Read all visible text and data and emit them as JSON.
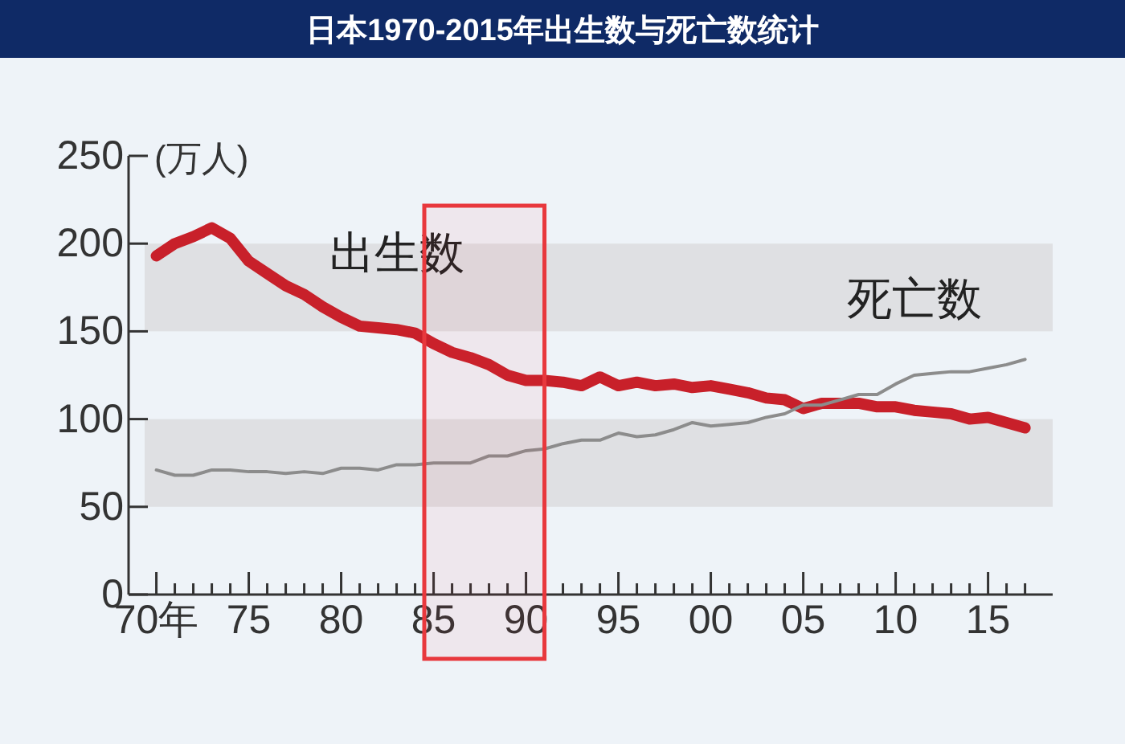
{
  "chart_data": {
    "type": "line",
    "title": "日本1970-2015年出生数与死亡数统计",
    "ylabel": "(万人)",
    "x": [
      "1970",
      "1971",
      "1972",
      "1973",
      "1974",
      "1975",
      "1976",
      "1977",
      "1978",
      "1979",
      "1980",
      "1981",
      "1982",
      "1983",
      "1984",
      "1985",
      "1986",
      "1987",
      "1988",
      "1989",
      "1990",
      "1991",
      "1992",
      "1993",
      "1994",
      "1995",
      "1996",
      "1997",
      "1998",
      "1999",
      "2000",
      "2001",
      "2002",
      "2003",
      "2004",
      "2005",
      "2006",
      "2007",
      "2008",
      "2009",
      "2010",
      "2011",
      "2012",
      "2013",
      "2014",
      "2015",
      "2016",
      "2017"
    ],
    "series": [
      {
        "name": "出生数",
        "color": "#c8202a",
        "values": [
          193,
          200,
          204,
          209,
          203,
          190,
          183,
          176,
          171,
          164,
          158,
          153,
          152,
          151,
          149,
          143,
          138,
          135,
          131,
          125,
          122,
          122,
          121,
          119,
          124,
          119,
          121,
          119,
          120,
          118,
          119,
          117,
          115,
          112,
          111,
          106,
          109,
          109,
          109,
          107,
          107,
          105,
          104,
          103,
          100,
          101,
          98,
          95
        ]
      },
      {
        "name": "死亡数",
        "color": "#8c8c8c",
        "values": [
          71,
          68,
          68,
          71,
          71,
          70,
          70,
          69,
          70,
          69,
          72,
          72,
          71,
          74,
          74,
          75,
          75,
          75,
          79,
          79,
          82,
          83,
          86,
          88,
          88,
          92,
          90,
          91,
          94,
          98,
          96,
          97,
          98,
          101,
          103,
          108,
          108,
          111,
          114,
          114,
          120,
          125,
          126,
          127,
          127,
          129,
          131,
          134
        ]
      }
    ],
    "xlim": [
      "1968-07",
      "2018-07"
    ],
    "xticks": [
      {
        "value": "1970",
        "label": "70年"
      },
      {
        "value": "1971",
        "label": null
      },
      {
        "value": "1972",
        "label": null
      },
      {
        "value": "1973",
        "label": null
      },
      {
        "value": "1974",
        "label": null
      },
      {
        "value": "1975",
        "label": "75"
      },
      {
        "value": "1976",
        "label": null
      },
      {
        "value": "1977",
        "label": null
      },
      {
        "value": "1978",
        "label": null
      },
      {
        "value": "1979",
        "label": null
      },
      {
        "value": "1980",
        "label": "80"
      },
      {
        "value": "1981",
        "label": null
      },
      {
        "value": "1982",
        "label": null
      },
      {
        "value": "1983",
        "label": null
      },
      {
        "value": "1984",
        "label": null
      },
      {
        "value": "1985",
        "label": "85"
      },
      {
        "value": "1986",
        "label": null
      },
      {
        "value": "1987",
        "label": null
      },
      {
        "value": "1988",
        "label": null
      },
      {
        "value": "1989",
        "label": null
      },
      {
        "value": "1990",
        "label": "90"
      },
      {
        "value": "1991",
        "label": null
      },
      {
        "value": "1992",
        "label": null
      },
      {
        "value": "1993",
        "label": null
      },
      {
        "value": "1994",
        "label": null
      },
      {
        "value": "1995",
        "label": "95"
      },
      {
        "value": "1996",
        "label": null
      },
      {
        "value": "1997",
        "label": null
      },
      {
        "value": "1998",
        "label": null
      },
      {
        "value": "1999",
        "label": null
      },
      {
        "value": "2000",
        "label": "00"
      },
      {
        "value": "2001",
        "label": null
      },
      {
        "value": "2002",
        "label": null
      },
      {
        "value": "2003",
        "label": null
      },
      {
        "value": "2004",
        "label": null
      },
      {
        "value": "2005",
        "label": "05"
      },
      {
        "value": "2006",
        "label": null
      },
      {
        "value": "2007",
        "label": null
      },
      {
        "value": "2008",
        "label": null
      },
      {
        "value": "2009",
        "label": null
      },
      {
        "value": "2010",
        "label": "10"
      },
      {
        "value": "2011",
        "label": null
      },
      {
        "value": "2012",
        "label": null
      },
      {
        "value": "2013",
        "label": null
      },
      {
        "value": "2014",
        "label": null
      },
      {
        "value": "2015",
        "label": "15"
      },
      {
        "value": "2016",
        "label": null
      },
      {
        "value": "2017",
        "label": null
      }
    ],
    "ylim": [
      0,
      250
    ],
    "yticks": [
      0,
      50,
      100,
      150,
      200,
      250
    ],
    "bands": [
      {
        "axis": "y",
        "from": 50,
        "to": 100,
        "color": "#dfe0e3"
      },
      {
        "axis": "y",
        "from": 150,
        "to": 200,
        "color": "#dfe0e3"
      },
      {
        "axis": "x",
        "from": "1984-07",
        "to": "1991-01",
        "color": "#e8383d"
      }
    ],
    "grid": false,
    "legend": false,
    "marker": "none",
    "line_style": "solid"
  }
}
